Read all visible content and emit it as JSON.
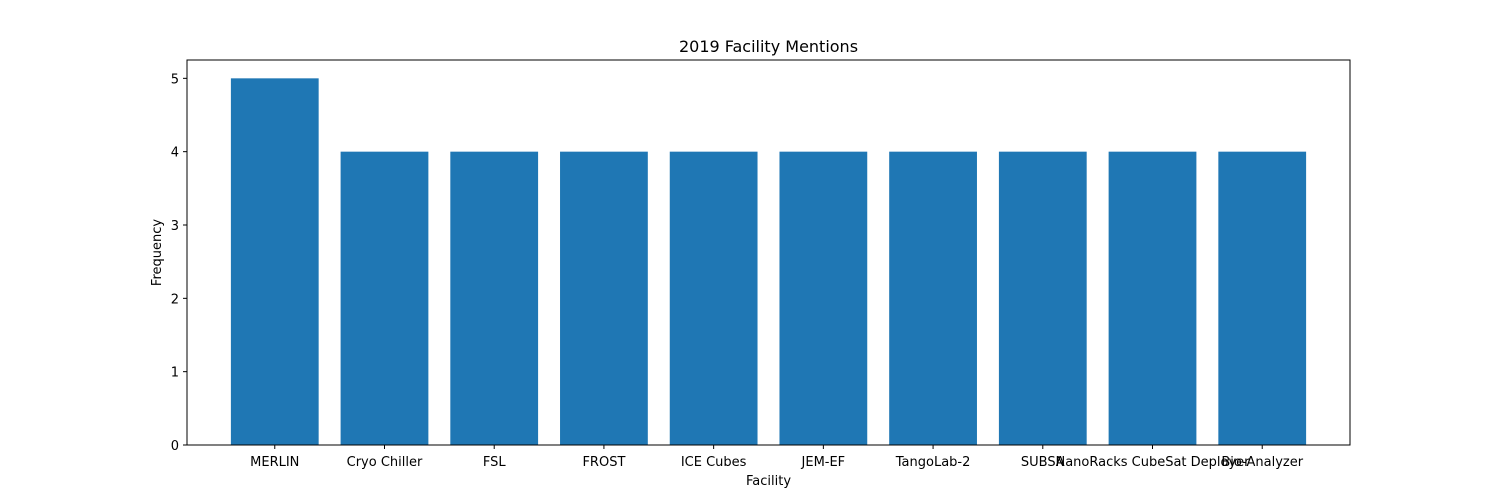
{
  "chart_data": {
    "type": "bar",
    "title": "2019 Facility Mentions",
    "xlabel": "Facility",
    "ylabel": "Frequency",
    "categories": [
      "MERLIN",
      "Cryo Chiller",
      "FSL",
      "FROST",
      "ICE Cubes",
      "JEM-EF",
      "TangoLab-2",
      "SUBSA",
      "NanoRacks CubeSat Deployer",
      "Bio-Analyzer"
    ],
    "values": [
      5,
      4,
      4,
      4,
      4,
      4,
      4,
      4,
      4,
      4
    ],
    "ylim": [
      0,
      5.25
    ],
    "yticks": [
      0,
      1,
      2,
      3,
      4,
      5
    ],
    "grid": false,
    "colors": {
      "bar": "#1f77b4",
      "axis": "#000000",
      "background": "#ffffff"
    }
  }
}
